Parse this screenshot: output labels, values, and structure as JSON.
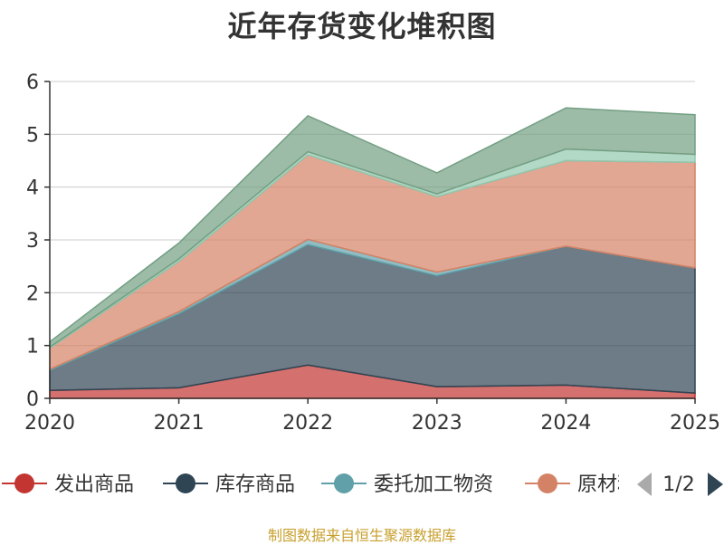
{
  "chart_data": {
    "type": "area",
    "stacked": true,
    "title": "近年存货变化堆积图",
    "xlabel": "",
    "ylabel": "",
    "x": [
      "2020",
      "2021",
      "2022",
      "2023",
      "2024",
      "2025"
    ],
    "ylim": [
      0,
      6
    ],
    "yticks": [
      0,
      1,
      2,
      3,
      4,
      5,
      6
    ],
    "grid": true,
    "legend_position": "bottom",
    "legend_page": "1/2",
    "series": [
      {
        "name": "发出商品",
        "color": "#c23531",
        "values": [
          0.15,
          0.2,
          0.63,
          0.22,
          0.25,
          0.1
        ]
      },
      {
        "name": "库存商品",
        "color": "#2f4554",
        "values": [
          0.38,
          1.4,
          2.28,
          2.1,
          2.63,
          2.37
        ]
      },
      {
        "name": "委托加工物资",
        "color": "#61a0a8",
        "values": [
          0.02,
          0.04,
          0.1,
          0.07,
          0.0,
          0.0
        ]
      },
      {
        "name": "原材料",
        "color": "#d48265",
        "values": [
          0.4,
          0.95,
          1.6,
          1.43,
          1.62,
          2.0
        ]
      },
      {
        "name": "",
        "color": "#91c7ae",
        "values": [
          0.02,
          0.05,
          0.06,
          0.05,
          0.22,
          0.15
        ]
      },
      {
        "name": "",
        "color": "#749f83",
        "values": [
          0.1,
          0.3,
          0.68,
          0.4,
          0.78,
          0.75
        ]
      }
    ]
  },
  "source_note": "制图数据来自恒生聚源数据库"
}
